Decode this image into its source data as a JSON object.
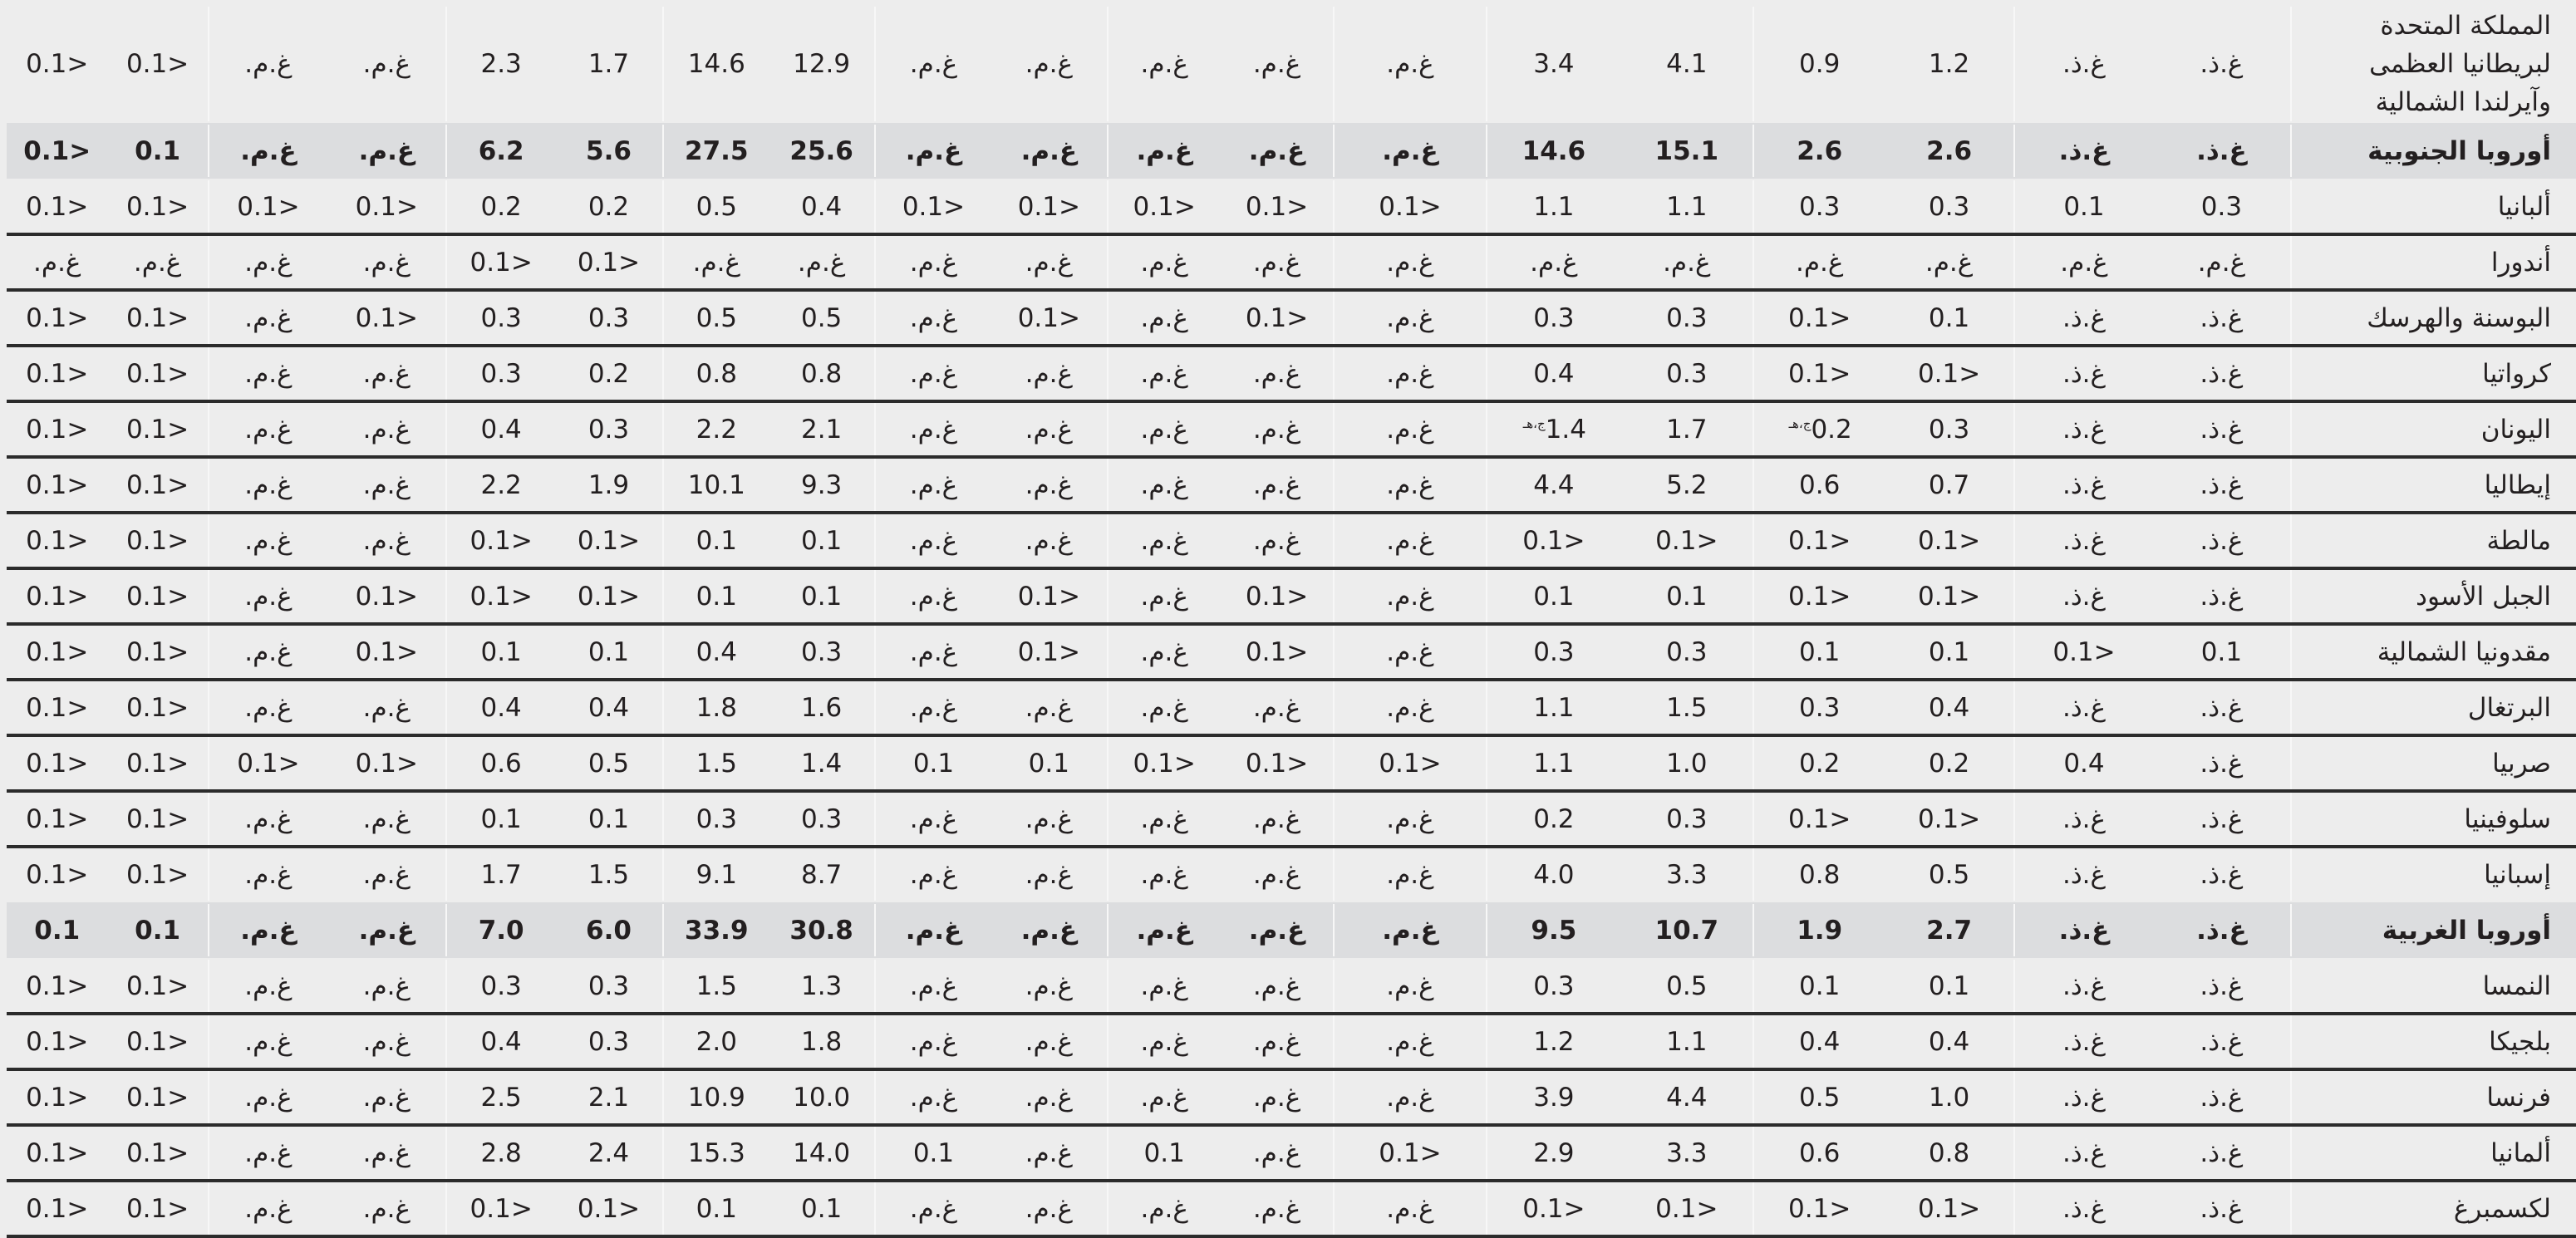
{
  "table": {
    "rows": [
      {
        "name": "المملكة المتحدة لبريطانيا العظمى وآيرلندا الشمالية",
        "region": false,
        "values": [
          "غ.ذ.",
          "غ.ذ.",
          "1.2",
          "0.9",
          "4.1",
          "3.4",
          "غ.م.",
          "غ.م.",
          "غ.م.",
          "غ.م.",
          "غ.م.",
          "12.9",
          "14.6",
          "1.7",
          "2.3",
          "غ.م.",
          "غ.م.",
          "<0.1",
          "<0.1"
        ]
      },
      {
        "name": "أوروبا الجنوبية",
        "region": true,
        "values": [
          "غ.ذ.",
          "غ.ذ.",
          "2.6",
          "2.6",
          "15.1",
          "14.6",
          "غ.م.",
          "غ.م.",
          "غ.م.",
          "غ.م.",
          "غ.م.",
          "25.6",
          "27.5",
          "5.6",
          "6.2",
          "غ.م.",
          "غ.م.",
          "0.1",
          "<0.1"
        ]
      },
      {
        "name": "ألبانيا",
        "region": false,
        "values": [
          "0.3",
          "0.1",
          "0.3",
          "0.3",
          "1.1",
          "1.1",
          "<0.1",
          "<0.1",
          "<0.1",
          "<0.1",
          "<0.1",
          "0.4",
          "0.5",
          "0.2",
          "0.2",
          "<0.1",
          "<0.1",
          "<0.1",
          "<0.1"
        ]
      },
      {
        "name": "أندورا",
        "region": false,
        "values": [
          "غ.م.",
          "غ.م.",
          "غ.م.",
          "غ.م.",
          "غ.م.",
          "غ.م.",
          "غ.م.",
          "غ.م.",
          "غ.م.",
          "غ.م.",
          "غ.م.",
          "غ.م.",
          "غ.م.",
          "<0.1",
          "<0.1",
          "غ.م.",
          "غ.م.",
          "غ.م.",
          "غ.م."
        ]
      },
      {
        "name": "البوسنة والهرسك",
        "region": false,
        "values": [
          "غ.ذ.",
          "غ.ذ.",
          "0.1",
          "<0.1",
          "0.3",
          "0.3",
          "غ.م.",
          "<0.1",
          "غ.م.",
          "<0.1",
          "غ.م.",
          "0.5",
          "0.5",
          "0.3",
          "0.3",
          "<0.1",
          "غ.م.",
          "<0.1",
          "<0.1"
        ]
      },
      {
        "name": "كرواتيا",
        "region": false,
        "values": [
          "غ.ذ.",
          "غ.ذ.",
          "<0.1",
          "<0.1",
          "0.3",
          "0.4",
          "غ.م.",
          "غ.م.",
          "غ.م.",
          "غ.م.",
          "غ.م.",
          "0.8",
          "0.8",
          "0.2",
          "0.3",
          "غ.م.",
          "غ.م.",
          "<0.1",
          "<0.1"
        ]
      },
      {
        "name": "اليونان",
        "region": false,
        "values": [
          "غ.ذ.",
          "غ.ذ.",
          "0.3",
          "0.2",
          "1.7",
          "1.4",
          "غ.م.",
          "غ.م.",
          "غ.م.",
          "غ.م.",
          "غ.م.",
          "2.1",
          "2.2",
          "0.3",
          "0.4",
          "غ.م.",
          "غ.م.",
          "<0.1",
          "<0.1"
        ],
        "notes": {
          "3": "ج،هـ",
          "5": "ج،هـ"
        }
      },
      {
        "name": "إيطاليا",
        "region": false,
        "values": [
          "غ.ذ.",
          "غ.ذ.",
          "0.7",
          "0.6",
          "5.2",
          "4.4",
          "غ.م.",
          "غ.م.",
          "غ.م.",
          "غ.م.",
          "غ.م.",
          "9.3",
          "10.1",
          "1.9",
          "2.2",
          "غ.م.",
          "غ.م.",
          "<0.1",
          "<0.1"
        ]
      },
      {
        "name": "مالطة",
        "region": false,
        "values": [
          "غ.ذ.",
          "غ.ذ.",
          "<0.1",
          "<0.1",
          "<0.1",
          "<0.1",
          "غ.م.",
          "غ.م.",
          "غ.م.",
          "غ.م.",
          "غ.م.",
          "0.1",
          "0.1",
          "<0.1",
          "<0.1",
          "غ.م.",
          "غ.م.",
          "<0.1",
          "<0.1"
        ]
      },
      {
        "name": "الجبل الأسود",
        "region": false,
        "values": [
          "غ.ذ.",
          "غ.ذ.",
          "<0.1",
          "<0.1",
          "0.1",
          "0.1",
          "غ.م.",
          "<0.1",
          "غ.م.",
          "<0.1",
          "غ.م.",
          "0.1",
          "0.1",
          "<0.1",
          "<0.1",
          "<0.1",
          "غ.م.",
          "<0.1",
          "<0.1"
        ]
      },
      {
        "name": "مقدونيا الشمالية",
        "region": false,
        "values": [
          "0.1",
          "<0.1",
          "0.1",
          "0.1",
          "0.3",
          "0.3",
          "غ.م.",
          "<0.1",
          "غ.م.",
          "<0.1",
          "غ.م.",
          "0.3",
          "0.4",
          "0.1",
          "0.1",
          "<0.1",
          "غ.م.",
          "<0.1",
          "<0.1"
        ]
      },
      {
        "name": "البرتغال",
        "region": false,
        "values": [
          "غ.ذ.",
          "غ.ذ.",
          "0.4",
          "0.3",
          "1.5",
          "1.1",
          "غ.م.",
          "غ.م.",
          "غ.م.",
          "غ.م.",
          "غ.م.",
          "1.6",
          "1.8",
          "0.4",
          "0.4",
          "غ.م.",
          "غ.م.",
          "<0.1",
          "<0.1"
        ]
      },
      {
        "name": "صربيا",
        "region": false,
        "values": [
          "غ.ذ.",
          "0.4",
          "0.2",
          "0.2",
          "1.0",
          "1.1",
          "<0.1",
          "<0.1",
          "<0.1",
          "0.1",
          "0.1",
          "1.4",
          "1.5",
          "0.5",
          "0.6",
          "<0.1",
          "<0.1",
          "<0.1",
          "<0.1"
        ]
      },
      {
        "name": "سلوفينيا",
        "region": false,
        "values": [
          "غ.ذ.",
          "غ.ذ.",
          "<0.1",
          "<0.1",
          "0.3",
          "0.2",
          "غ.م.",
          "غ.م.",
          "غ.م.",
          "غ.م.",
          "غ.م.",
          "0.3",
          "0.3",
          "0.1",
          "0.1",
          "غ.م.",
          "غ.م.",
          "<0.1",
          "<0.1"
        ]
      },
      {
        "name": "إسبانيا",
        "region": false,
        "values": [
          "غ.ذ.",
          "غ.ذ.",
          "0.5",
          "0.8",
          "3.3",
          "4.0",
          "غ.م.",
          "غ.م.",
          "غ.م.",
          "غ.م.",
          "غ.م.",
          "8.7",
          "9.1",
          "1.5",
          "1.7",
          "غ.م.",
          "غ.م.",
          "<0.1",
          "<0.1"
        ]
      },
      {
        "name": "أوروبا الغربية",
        "region": true,
        "values": [
          "غ.ذ.",
          "غ.ذ.",
          "2.7",
          "1.9",
          "10.7",
          "9.5",
          "غ.م.",
          "غ.م.",
          "غ.م.",
          "غ.م.",
          "غ.م.",
          "30.8",
          "33.9",
          "6.0",
          "7.0",
          "غ.م.",
          "غ.م.",
          "0.1",
          "0.1"
        ]
      },
      {
        "name": "النمسا",
        "region": false,
        "values": [
          "غ.ذ.",
          "غ.ذ.",
          "0.1",
          "0.1",
          "0.5",
          "0.3",
          "غ.م.",
          "غ.م.",
          "غ.م.",
          "غ.م.",
          "غ.م.",
          "1.3",
          "1.5",
          "0.3",
          "0.3",
          "غ.م.",
          "غ.م.",
          "<0.1",
          "<0.1"
        ]
      },
      {
        "name": "بلجيكا",
        "region": false,
        "values": [
          "غ.ذ.",
          "غ.ذ.",
          "0.4",
          "0.4",
          "1.1",
          "1.2",
          "غ.م.",
          "غ.م.",
          "غ.م.",
          "غ.م.",
          "غ.م.",
          "1.8",
          "2.0",
          "0.3",
          "0.4",
          "غ.م.",
          "غ.م.",
          "<0.1",
          "<0.1"
        ]
      },
      {
        "name": "فرنسا",
        "region": false,
        "values": [
          "غ.ذ.",
          "غ.ذ.",
          "1.0",
          "0.5",
          "4.4",
          "3.9",
          "غ.م.",
          "غ.م.",
          "غ.م.",
          "غ.م.",
          "غ.م.",
          "10.0",
          "10.9",
          "2.1",
          "2.5",
          "غ.م.",
          "غ.م.",
          "<0.1",
          "<0.1"
        ]
      },
      {
        "name": "ألمانيا",
        "region": false,
        "values": [
          "غ.ذ.",
          "غ.ذ.",
          "0.8",
          "0.6",
          "3.3",
          "2.9",
          "<0.1",
          "غ.م.",
          "0.1",
          "غ.م.",
          "0.1",
          "14.0",
          "15.3",
          "2.4",
          "2.8",
          "غ.م.",
          "غ.م.",
          "<0.1",
          "<0.1"
        ]
      },
      {
        "name": "لكسمبرغ",
        "region": false,
        "values": [
          "غ.ذ.",
          "غ.ذ.",
          "<0.1",
          "<0.1",
          "<0.1",
          "<0.1",
          "غ.م.",
          "غ.م.",
          "غ.م.",
          "غ.م.",
          "غ.م.",
          "0.1",
          "0.1",
          "<0.1",
          "<0.1",
          "غ.م.",
          "غ.م.",
          "<0.1",
          "<0.1"
        ]
      }
    ]
  }
}
